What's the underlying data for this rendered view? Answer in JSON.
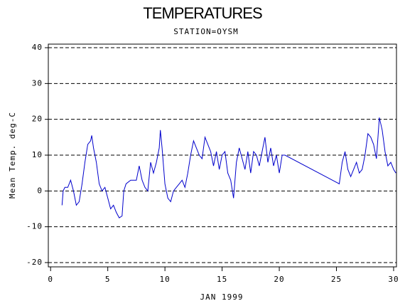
{
  "chart_data": {
    "type": "line",
    "title": "TEMPERATURES",
    "subtitle": "STATION=OYSM",
    "xlabel": "JAN 1999",
    "ylabel": "Mean Temp. deg-C",
    "x": [
      1.0,
      1.1,
      1.25,
      1.5,
      1.75,
      2.0,
      2.25,
      2.5,
      2.75,
      3.0,
      3.25,
      3.5,
      3.6,
      3.75,
      4.0,
      4.25,
      4.5,
      4.75,
      5.0,
      5.25,
      5.5,
      5.75,
      6.0,
      6.25,
      6.4,
      6.6,
      7.0,
      7.5,
      7.75,
      8.0,
      8.25,
      8.5,
      8.75,
      9.0,
      9.25,
      9.5,
      9.6,
      9.75,
      10.0,
      10.25,
      10.5,
      10.75,
      11.0,
      11.25,
      11.5,
      11.75,
      12.0,
      12.25,
      12.5,
      12.75,
      13.0,
      13.25,
      13.5,
      13.75,
      14.0,
      14.25,
      14.5,
      14.75,
      15.0,
      15.25,
      15.5,
      15.75,
      16.0,
      16.25,
      16.5,
      16.75,
      17.0,
      17.25,
      17.5,
      17.75,
      18.0,
      18.25,
      18.5,
      18.75,
      19.0,
      19.25,
      19.5,
      19.75,
      20.0,
      20.25,
      20.5,
      25.25,
      25.5,
      25.75,
      26.0,
      26.25,
      26.5,
      26.75,
      27.0,
      27.25,
      27.5,
      27.75,
      28.0,
      28.25,
      28.5,
      28.75,
      29.0,
      29.25,
      29.5,
      29.75,
      30.0,
      30.2
    ],
    "series": [
      {
        "name": "Mean Temp",
        "color": "#0000cc",
        "values": [
          -4,
          0,
          1,
          1,
          3,
          0,
          -4,
          -3,
          2,
          8,
          13,
          14,
          15.5,
          12,
          8,
          2,
          0,
          1,
          -2,
          -5,
          -4,
          -6,
          -7.5,
          -7,
          0,
          2,
          3,
          3,
          7,
          3,
          1,
          0,
          8,
          5,
          8,
          12,
          17,
          12,
          2,
          -2,
          -3,
          0,
          1,
          2,
          3,
          1,
          5,
          10,
          14,
          12,
          10,
          9,
          15,
          13,
          11,
          7,
          11,
          6,
          10,
          11,
          5,
          3,
          -2,
          8,
          12,
          9,
          6,
          11,
          5,
          11,
          10,
          7,
          11,
          15,
          8,
          12,
          7,
          10,
          5,
          10,
          10,
          2,
          8,
          11,
          6,
          4,
          6,
          8,
          5,
          6,
          10,
          16,
          15,
          13,
          9,
          20.5,
          17,
          11,
          7,
          8,
          6,
          5
        ]
      }
    ],
    "xlim": [
      -0.2,
      30.25
    ],
    "xticks": [
      0,
      5,
      10,
      15,
      20,
      25,
      30
    ],
    "ylim": [
      -21.2,
      41
    ],
    "yticks": [
      -20,
      -10,
      0,
      10,
      20,
      30,
      40
    ],
    "grid": true
  }
}
